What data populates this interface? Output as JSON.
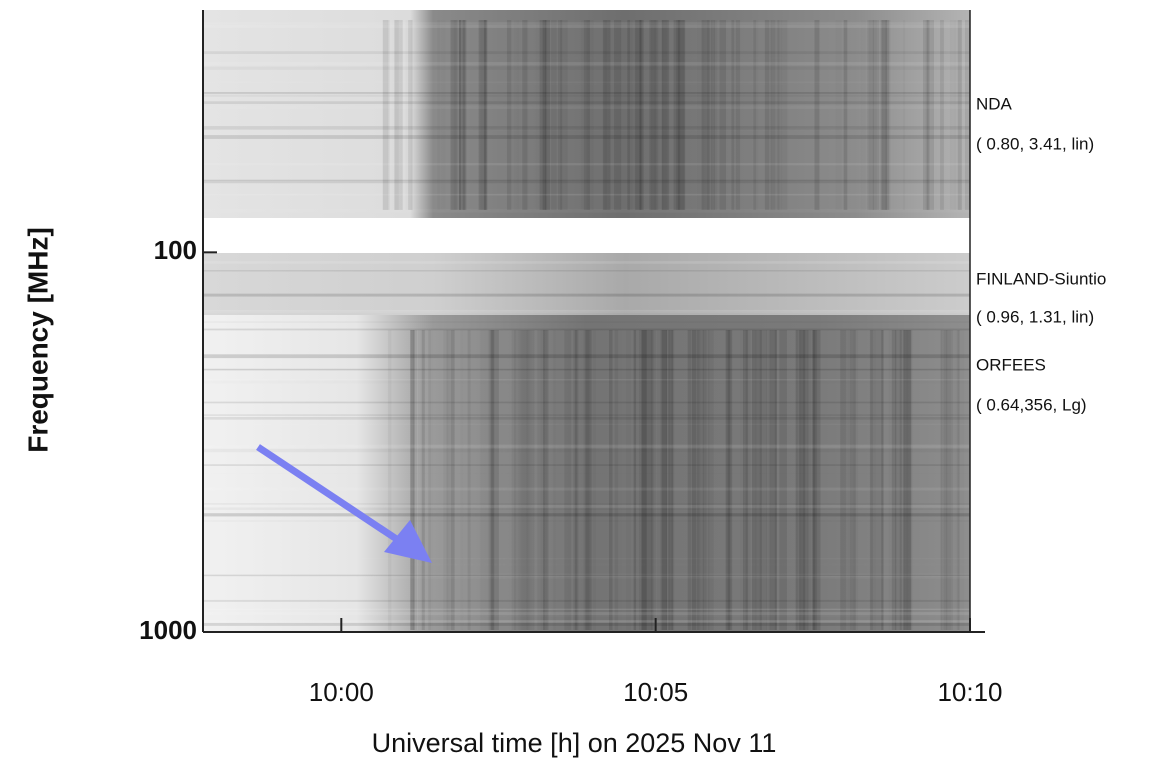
{
  "chart_data": {
    "type": "spectrogram",
    "xlabel": "Universal time [h] on 2025 Nov 11",
    "ylabel": "Frequency [MHz]",
    "xlim": [
      597.8,
      610
    ],
    "xticks": [
      {
        "value": 600,
        "label": "10:00"
      },
      {
        "value": 605,
        "label": "10:05"
      },
      {
        "value": 610,
        "label": "10:10"
      }
    ],
    "ylim": [
      23,
      1000
    ],
    "yticks": [
      100,
      1000
    ],
    "log_y": true,
    "y_inverted": true,
    "instruments": [
      {
        "name": "NDA",
        "params": "( 0.80, 3.41, lin)"
      },
      {
        "name": "FINLAND-Siuntio",
        "params": "( 0.96, 1.31, lin)"
      },
      {
        "name": "ORFEES",
        "params": "( 0.64,356, Lg)"
      }
    ]
  }
}
